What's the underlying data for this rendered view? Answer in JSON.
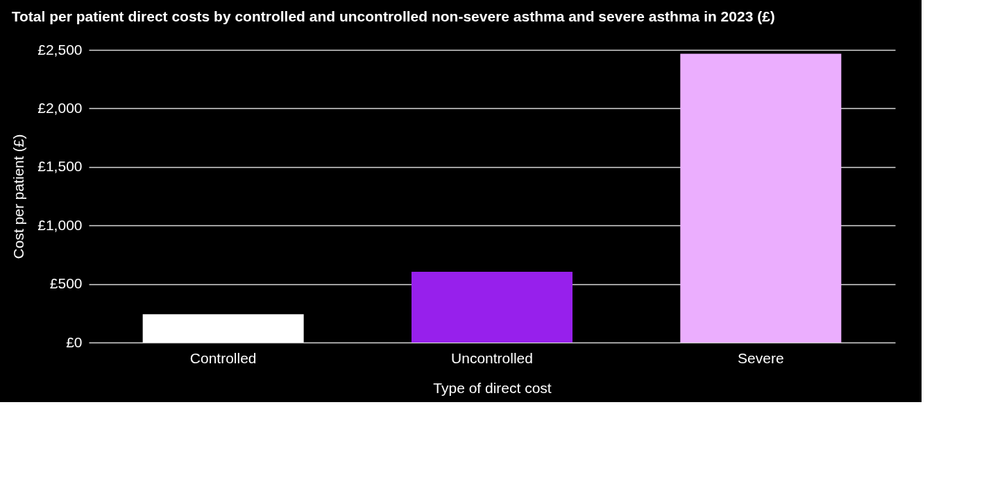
{
  "chart_data": {
    "type": "bar",
    "title": "Total per patient direct costs by controlled and uncontrolled non-severe asthma and severe asthma in 2023 (£)",
    "xlabel": "Type of direct cost",
    "ylabel": "Cost per patient (£)",
    "categories": [
      "Controlled",
      "Uncontrolled",
      "Severe"
    ],
    "values": [
      242,
      604,
      2468
    ],
    "colors": [
      "#ffffff",
      "#9720ec",
      "#ebaefe"
    ],
    "ylim": [
      0,
      2500
    ],
    "yticks": [
      {
        "value": 0,
        "label": "£0"
      },
      {
        "value": 500,
        "label": "£500"
      },
      {
        "value": 1000,
        "label": "£1,000"
      },
      {
        "value": 1500,
        "label": "£1,500"
      },
      {
        "value": 2000,
        "label": "£2,000"
      },
      {
        "value": 2500,
        "label": "£2,500"
      }
    ],
    "grid": "y",
    "legend": false
  }
}
